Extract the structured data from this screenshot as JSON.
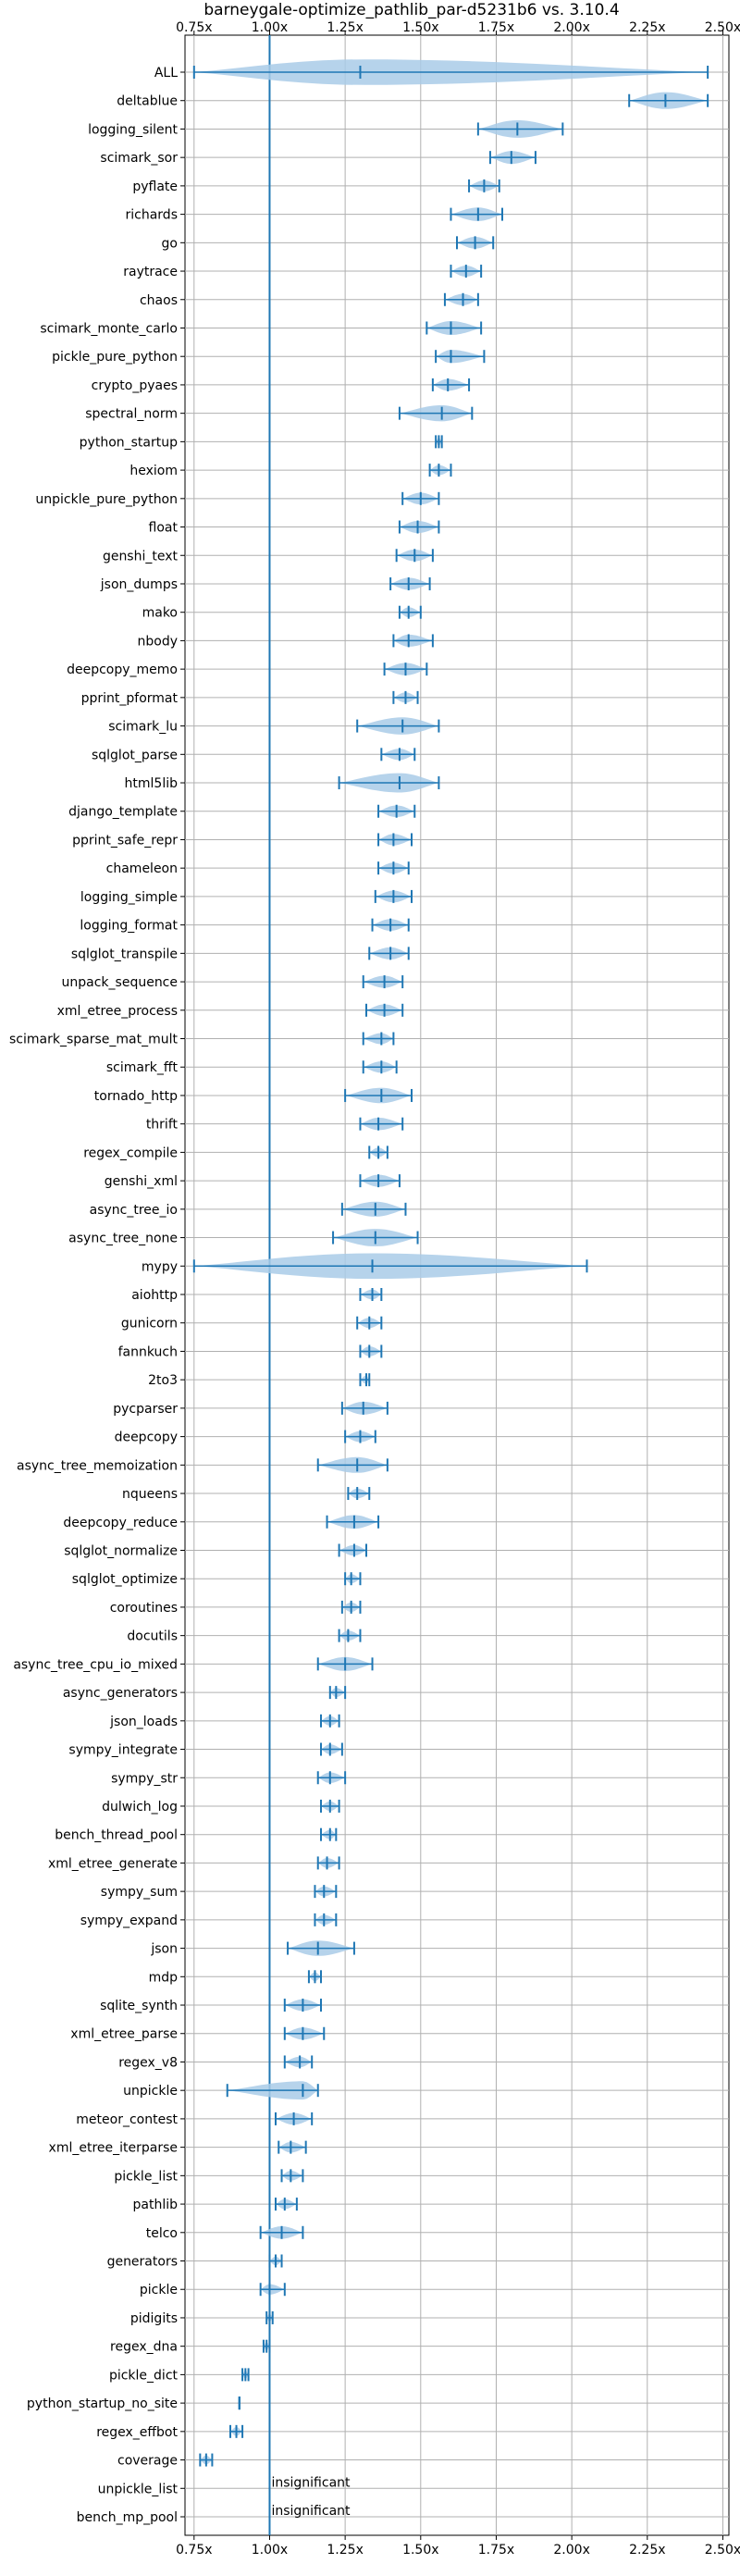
{
  "chart_data": {
    "type": "violin",
    "title": "barneygale-optimize_pathlib_par-d5231b6 vs. 3.10.4",
    "xlabel": "",
    "ylabel": "",
    "xlim": [
      0.72,
      2.52
    ],
    "xticks": [
      0.75,
      1.0,
      1.25,
      1.5,
      1.75,
      2.0,
      2.25,
      2.5
    ],
    "xtick_labels": [
      "0.75x",
      "1.00x",
      "1.25x",
      "1.50x",
      "1.75x",
      "2.00x",
      "2.25x",
      "2.50x"
    ],
    "reference_line": 1.0,
    "grid": true,
    "colors": {
      "violin": "#a9cbe8",
      "line": "#1f77b4",
      "grid": "#b0b0b0"
    },
    "benchmarks": [
      {
        "name": "ALL",
        "min": 0.75,
        "max": 2.45,
        "median": 1.3
      },
      {
        "name": "deltablue",
        "min": 2.19,
        "max": 2.45,
        "median": 2.31
      },
      {
        "name": "logging_silent",
        "min": 1.69,
        "max": 1.97,
        "median": 1.82
      },
      {
        "name": "scimark_sor",
        "min": 1.73,
        "max": 1.88,
        "median": 1.8
      },
      {
        "name": "pyflate",
        "min": 1.66,
        "max": 1.76,
        "median": 1.71
      },
      {
        "name": "richards",
        "min": 1.6,
        "max": 1.77,
        "median": 1.69
      },
      {
        "name": "go",
        "min": 1.62,
        "max": 1.74,
        "median": 1.68
      },
      {
        "name": "raytrace",
        "min": 1.6,
        "max": 1.7,
        "median": 1.65
      },
      {
        "name": "chaos",
        "min": 1.58,
        "max": 1.69,
        "median": 1.64
      },
      {
        "name": "scimark_monte_carlo",
        "min": 1.52,
        "max": 1.7,
        "median": 1.6
      },
      {
        "name": "pickle_pure_python",
        "min": 1.55,
        "max": 1.71,
        "median": 1.6
      },
      {
        "name": "crypto_pyaes",
        "min": 1.54,
        "max": 1.66,
        "median": 1.59
      },
      {
        "name": "spectral_norm",
        "min": 1.43,
        "max": 1.67,
        "median": 1.57
      },
      {
        "name": "python_startup",
        "min": 1.55,
        "max": 1.57,
        "median": 1.56
      },
      {
        "name": "hexiom",
        "min": 1.53,
        "max": 1.6,
        "median": 1.56
      },
      {
        "name": "unpickle_pure_python",
        "min": 1.44,
        "max": 1.56,
        "median": 1.5
      },
      {
        "name": "float",
        "min": 1.43,
        "max": 1.56,
        "median": 1.49
      },
      {
        "name": "genshi_text",
        "min": 1.42,
        "max": 1.54,
        "median": 1.48
      },
      {
        "name": "json_dumps",
        "min": 1.4,
        "max": 1.53,
        "median": 1.46
      },
      {
        "name": "mako",
        "min": 1.43,
        "max": 1.5,
        "median": 1.46
      },
      {
        "name": "nbody",
        "min": 1.41,
        "max": 1.54,
        "median": 1.46
      },
      {
        "name": "deepcopy_memo",
        "min": 1.38,
        "max": 1.52,
        "median": 1.45
      },
      {
        "name": "pprint_pformat",
        "min": 1.41,
        "max": 1.49,
        "median": 1.45
      },
      {
        "name": "scimark_lu",
        "min": 1.29,
        "max": 1.56,
        "median": 1.44
      },
      {
        "name": "sqlglot_parse",
        "min": 1.37,
        "max": 1.48,
        "median": 1.43
      },
      {
        "name": "html5lib",
        "min": 1.23,
        "max": 1.56,
        "median": 1.43
      },
      {
        "name": "django_template",
        "min": 1.36,
        "max": 1.48,
        "median": 1.42
      },
      {
        "name": "pprint_safe_repr",
        "min": 1.36,
        "max": 1.47,
        "median": 1.41
      },
      {
        "name": "chameleon",
        "min": 1.36,
        "max": 1.46,
        "median": 1.41
      },
      {
        "name": "logging_simple",
        "min": 1.35,
        "max": 1.47,
        "median": 1.41
      },
      {
        "name": "logging_format",
        "min": 1.34,
        "max": 1.46,
        "median": 1.4
      },
      {
        "name": "sqlglot_transpile",
        "min": 1.33,
        "max": 1.46,
        "median": 1.4
      },
      {
        "name": "unpack_sequence",
        "min": 1.31,
        "max": 1.44,
        "median": 1.38
      },
      {
        "name": "xml_etree_process",
        "min": 1.32,
        "max": 1.44,
        "median": 1.38
      },
      {
        "name": "scimark_sparse_mat_mult",
        "min": 1.31,
        "max": 1.41,
        "median": 1.37
      },
      {
        "name": "scimark_fft",
        "min": 1.31,
        "max": 1.42,
        "median": 1.37
      },
      {
        "name": "tornado_http",
        "min": 1.25,
        "max": 1.47,
        "median": 1.37
      },
      {
        "name": "thrift",
        "min": 1.3,
        "max": 1.44,
        "median": 1.36
      },
      {
        "name": "regex_compile",
        "min": 1.33,
        "max": 1.39,
        "median": 1.36
      },
      {
        "name": "genshi_xml",
        "min": 1.3,
        "max": 1.43,
        "median": 1.36
      },
      {
        "name": "async_tree_io",
        "min": 1.24,
        "max": 1.45,
        "median": 1.35
      },
      {
        "name": "async_tree_none",
        "min": 1.21,
        "max": 1.49,
        "median": 1.35
      },
      {
        "name": "mypy",
        "min": 0.75,
        "max": 2.05,
        "median": 1.34
      },
      {
        "name": "aiohttp",
        "min": 1.3,
        "max": 1.37,
        "median": 1.34
      },
      {
        "name": "gunicorn",
        "min": 1.29,
        "max": 1.37,
        "median": 1.33
      },
      {
        "name": "fannkuch",
        "min": 1.3,
        "max": 1.37,
        "median": 1.33
      },
      {
        "name": "2to3",
        "min": 1.3,
        "max": 1.33,
        "median": 1.32
      },
      {
        "name": "pycparser",
        "min": 1.24,
        "max": 1.39,
        "median": 1.31
      },
      {
        "name": "deepcopy",
        "min": 1.25,
        "max": 1.35,
        "median": 1.3
      },
      {
        "name": "async_tree_memoization",
        "min": 1.16,
        "max": 1.39,
        "median": 1.29
      },
      {
        "name": "nqueens",
        "min": 1.26,
        "max": 1.33,
        "median": 1.29
      },
      {
        "name": "deepcopy_reduce",
        "min": 1.19,
        "max": 1.36,
        "median": 1.28
      },
      {
        "name": "sqlglot_normalize",
        "min": 1.23,
        "max": 1.32,
        "median": 1.28
      },
      {
        "name": "sqlglot_optimize",
        "min": 1.25,
        "max": 1.3,
        "median": 1.27
      },
      {
        "name": "coroutines",
        "min": 1.24,
        "max": 1.3,
        "median": 1.27
      },
      {
        "name": "docutils",
        "min": 1.23,
        "max": 1.3,
        "median": 1.26
      },
      {
        "name": "async_tree_cpu_io_mixed",
        "min": 1.16,
        "max": 1.34,
        "median": 1.25
      },
      {
        "name": "async_generators",
        "min": 1.2,
        "max": 1.25,
        "median": 1.22
      },
      {
        "name": "json_loads",
        "min": 1.17,
        "max": 1.23,
        "median": 1.2
      },
      {
        "name": "sympy_integrate",
        "min": 1.17,
        "max": 1.24,
        "median": 1.2
      },
      {
        "name": "sympy_str",
        "min": 1.16,
        "max": 1.25,
        "median": 1.2
      },
      {
        "name": "dulwich_log",
        "min": 1.17,
        "max": 1.23,
        "median": 1.2
      },
      {
        "name": "bench_thread_pool",
        "min": 1.17,
        "max": 1.22,
        "median": 1.2
      },
      {
        "name": "xml_etree_generate",
        "min": 1.16,
        "max": 1.23,
        "median": 1.19
      },
      {
        "name": "sympy_sum",
        "min": 1.15,
        "max": 1.22,
        "median": 1.18
      },
      {
        "name": "sympy_expand",
        "min": 1.15,
        "max": 1.22,
        "median": 1.18
      },
      {
        "name": "json",
        "min": 1.06,
        "max": 1.28,
        "median": 1.16
      },
      {
        "name": "mdp",
        "min": 1.13,
        "max": 1.17,
        "median": 1.15
      },
      {
        "name": "sqlite_synth",
        "min": 1.05,
        "max": 1.17,
        "median": 1.11
      },
      {
        "name": "xml_etree_parse",
        "min": 1.05,
        "max": 1.18,
        "median": 1.11
      },
      {
        "name": "regex_v8",
        "min": 1.05,
        "max": 1.14,
        "median": 1.1
      },
      {
        "name": "unpickle",
        "min": 0.86,
        "max": 1.16,
        "median": 1.11
      },
      {
        "name": "meteor_contest",
        "min": 1.02,
        "max": 1.14,
        "median": 1.08
      },
      {
        "name": "xml_etree_iterparse",
        "min": 1.03,
        "max": 1.12,
        "median": 1.07
      },
      {
        "name": "pickle_list",
        "min": 1.04,
        "max": 1.11,
        "median": 1.07
      },
      {
        "name": "pathlib",
        "min": 1.02,
        "max": 1.09,
        "median": 1.05
      },
      {
        "name": "telco",
        "min": 0.97,
        "max": 1.11,
        "median": 1.04
      },
      {
        "name": "generators",
        "min": 1.0,
        "max": 1.04,
        "median": 1.02
      },
      {
        "name": "pickle",
        "min": 0.97,
        "max": 1.05,
        "median": 1.0
      },
      {
        "name": "pidigits",
        "min": 0.99,
        "max": 1.01,
        "median": 1.0
      },
      {
        "name": "regex_dna",
        "min": 0.98,
        "max": 1.0,
        "median": 0.99
      },
      {
        "name": "pickle_dict",
        "min": 0.91,
        "max": 0.93,
        "median": 0.92
      },
      {
        "name": "python_startup_no_site",
        "min": 0.9,
        "max": 0.9,
        "median": 0.9
      },
      {
        "name": "regex_effbot",
        "min": 0.87,
        "max": 0.91,
        "median": 0.89
      },
      {
        "name": "coverage",
        "min": 0.77,
        "max": 0.81,
        "median": 0.79
      },
      {
        "name": "unpickle_list",
        "min": null,
        "max": null,
        "median": null,
        "annotation": "insignificant"
      },
      {
        "name": "bench_mp_pool",
        "min": null,
        "max": null,
        "median": null,
        "annotation": "insignificant"
      }
    ]
  }
}
